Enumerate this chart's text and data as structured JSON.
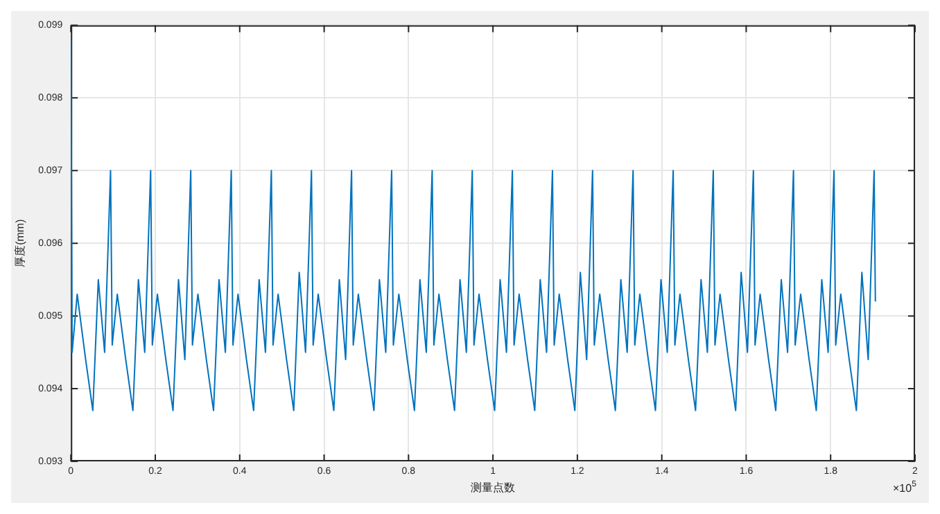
{
  "chart_data": {
    "type": "line",
    "xlabel": "测量点数",
    "ylabel": "厚度(mm)",
    "annotations": [
      "×10$^{5}$"
    ],
    "xlim": [
      0,
      2
    ],
    "xticks": [
      0,
      0.2,
      0.4,
      0.6,
      0.8,
      1,
      1.2,
      1.4,
      1.6,
      1.8,
      2
    ],
    "ylim": [
      0.093,
      0.099
    ],
    "yticks": [
      0.093,
      0.094,
      0.095,
      0.096,
      0.097,
      0.098,
      0.099
    ],
    "grid": true,
    "marker": "none",
    "line_style": "solid",
    "series": [
      {
        "color": "#0072bd",
        "x": [
          0,
          0.003,
          0.015,
          0.035,
          0.052,
          0.065,
          0.08,
          0.094,
          0.098,
          0.11,
          0.13,
          0.147,
          0.16,
          0.175,
          0.189,
          0.193,
          0.205,
          0.225,
          0.242,
          0.255,
          0.27,
          0.284,
          0.288,
          0.301,
          0.321,
          0.338,
          0.351,
          0.366,
          0.38,
          0.384,
          0.396,
          0.416,
          0.433,
          0.446,
          0.461,
          0.475,
          0.479,
          0.491,
          0.511,
          0.528,
          0.541,
          0.556,
          0.57,
          0.574,
          0.586,
          0.606,
          0.623,
          0.636,
          0.651,
          0.665,
          0.669,
          0.681,
          0.701,
          0.718,
          0.731,
          0.746,
          0.76,
          0.764,
          0.777,
          0.797,
          0.814,
          0.827,
          0.842,
          0.856,
          0.86,
          0.872,
          0.892,
          0.909,
          0.922,
          0.937,
          0.951,
          0.955,
          0.967,
          0.987,
          1.004,
          1.017,
          1.032,
          1.046,
          1.05,
          1.062,
          1.082,
          1.099,
          1.112,
          1.127,
          1.141,
          1.145,
          1.157,
          1.177,
          1.194,
          1.207,
          1.222,
          1.236,
          1.24,
          1.253,
          1.273,
          1.29,
          1.303,
          1.318,
          1.332,
          1.336,
          1.348,
          1.368,
          1.385,
          1.398,
          1.413,
          1.427,
          1.431,
          1.443,
          1.463,
          1.48,
          1.493,
          1.508,
          1.522,
          1.526,
          1.538,
          1.558,
          1.575,
          1.588,
          1.603,
          1.617,
          1.621,
          1.633,
          1.653,
          1.67,
          1.683,
          1.698,
          1.712,
          1.716,
          1.729,
          1.749,
          1.766,
          1.779,
          1.794,
          1.808,
          1.812,
          1.824,
          1.844,
          1.861,
          1.874,
          1.889,
          1.903,
          1.906
        ],
        "values": [
          0.0988,
          0.0945,
          0.0953,
          0.0944,
          0.0937,
          0.0955,
          0.0945,
          0.097,
          0.0946,
          0.0953,
          0.0944,
          0.0937,
          0.0955,
          0.0945,
          0.097,
          0.0946,
          0.0953,
          0.0944,
          0.0937,
          0.0955,
          0.0944,
          0.097,
          0.0946,
          0.0953,
          0.0944,
          0.0937,
          0.0955,
          0.0945,
          0.097,
          0.0946,
          0.0953,
          0.0944,
          0.0937,
          0.0955,
          0.0945,
          0.097,
          0.0946,
          0.0953,
          0.0944,
          0.0937,
          0.0956,
          0.0945,
          0.097,
          0.0946,
          0.0953,
          0.0944,
          0.0937,
          0.0955,
          0.0944,
          0.097,
          0.0946,
          0.0953,
          0.0944,
          0.0937,
          0.0955,
          0.0945,
          0.097,
          0.0946,
          0.0953,
          0.0944,
          0.0937,
          0.0955,
          0.0945,
          0.097,
          0.0946,
          0.0953,
          0.0944,
          0.0937,
          0.0955,
          0.0945,
          0.097,
          0.0946,
          0.0953,
          0.0944,
          0.0937,
          0.0955,
          0.0945,
          0.097,
          0.0946,
          0.0953,
          0.0944,
          0.0937,
          0.0955,
          0.0945,
          0.097,
          0.0946,
          0.0953,
          0.0944,
          0.0937,
          0.0956,
          0.0944,
          0.097,
          0.0946,
          0.0953,
          0.0944,
          0.0937,
          0.0955,
          0.0945,
          0.097,
          0.0946,
          0.0953,
          0.0944,
          0.0937,
          0.0955,
          0.0945,
          0.097,
          0.0946,
          0.0953,
          0.0944,
          0.0937,
          0.0955,
          0.0945,
          0.097,
          0.0946,
          0.0953,
          0.0944,
          0.0937,
          0.0956,
          0.0945,
          0.097,
          0.0946,
          0.0953,
          0.0944,
          0.0937,
          0.0955,
          0.0945,
          0.097,
          0.0946,
          0.0953,
          0.0944,
          0.0937,
          0.0955,
          0.0945,
          0.097,
          0.0946,
          0.0953,
          0.0944,
          0.0937,
          0.0956,
          0.0944,
          0.097,
          0.0952
        ]
      }
    ]
  }
}
